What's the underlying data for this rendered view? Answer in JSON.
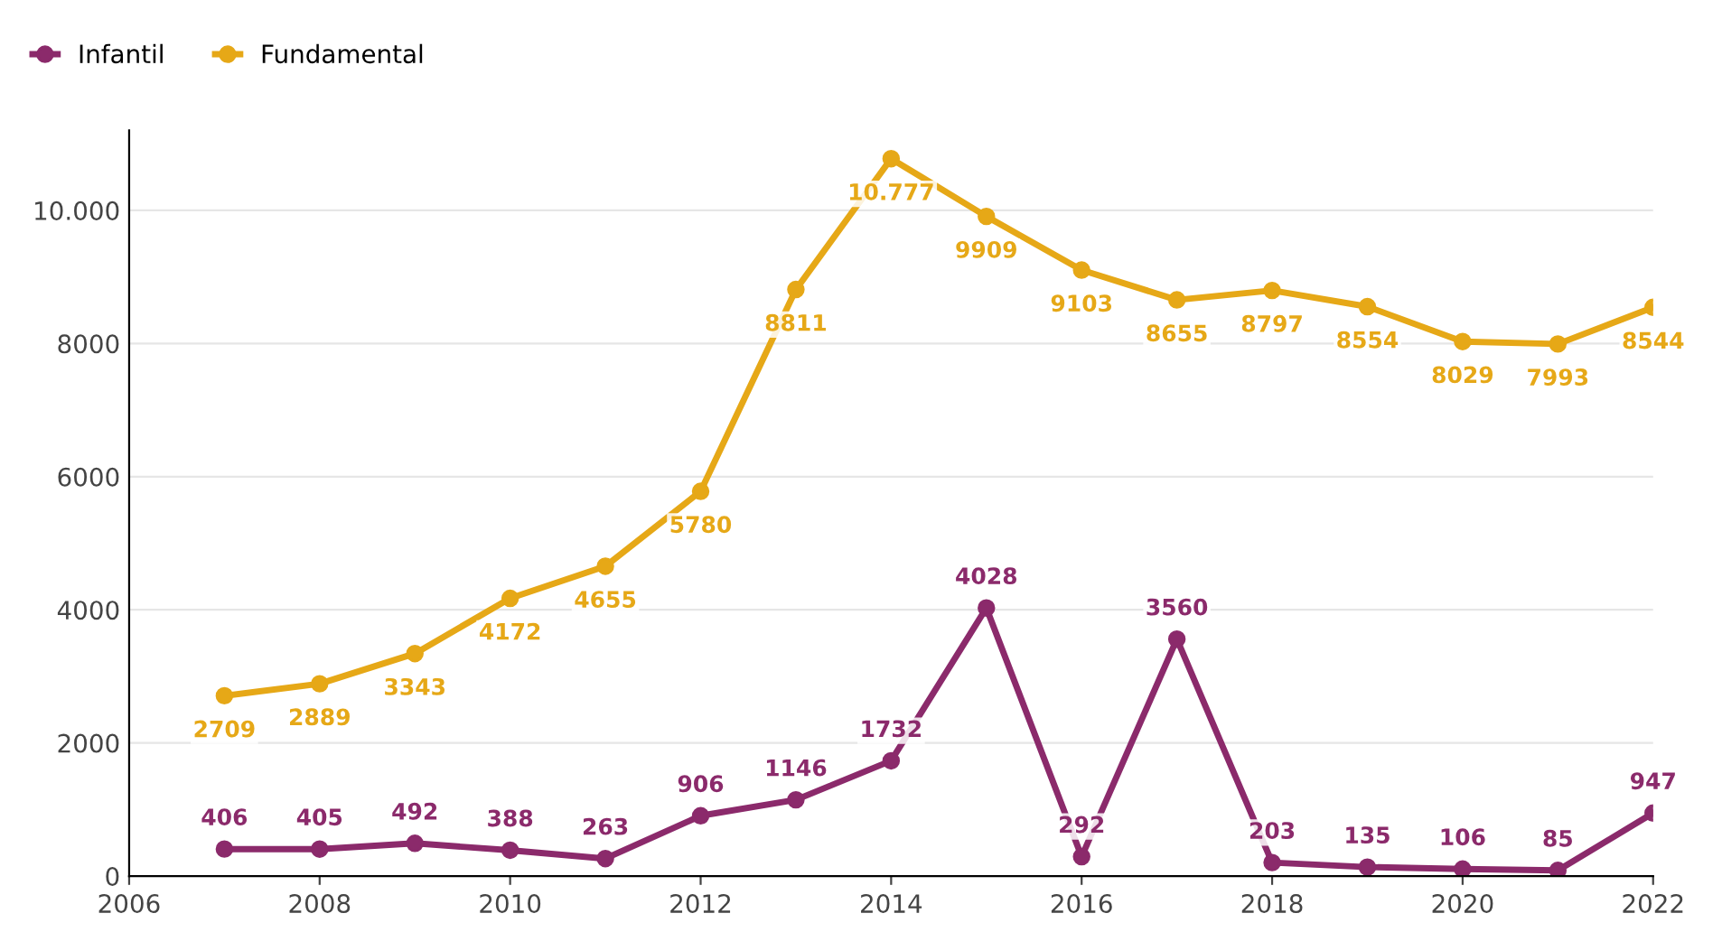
{
  "chart_data": {
    "type": "line",
    "x": [
      2007,
      2008,
      2009,
      2010,
      2011,
      2012,
      2013,
      2014,
      2015,
      2016,
      2017,
      2018,
      2019,
      2020,
      2021,
      2022
    ],
    "series": [
      {
        "name": "Infantil",
        "color": "#8b2a6b",
        "values": [
          406,
          405,
          492,
          388,
          263,
          906,
          1146,
          1732,
          4028,
          292,
          3560,
          203,
          135,
          106,
          85,
          947
        ],
        "value_labels": [
          "406",
          "405",
          "492",
          "388",
          "263",
          "906",
          "1146",
          "1732",
          "4028",
          "292",
          "3560",
          "203",
          "135",
          "106",
          "85",
          "947"
        ]
      },
      {
        "name": "Fundamental",
        "color": "#e6a817",
        "values": [
          2709,
          2889,
          3343,
          4172,
          4655,
          5780,
          8811,
          10777,
          9909,
          9103,
          8655,
          8797,
          8554,
          8029,
          7993,
          8544
        ],
        "value_labels": [
          "2709",
          "2889",
          "3343",
          "4172",
          "4655",
          "5780",
          "8811",
          "10.777",
          "9909",
          "9103",
          "8655",
          "8797",
          "8554",
          "8029",
          "7993",
          "8544"
        ]
      }
    ],
    "xlim": [
      2006,
      2022
    ],
    "xticks": [
      2006,
      2008,
      2010,
      2012,
      2014,
      2016,
      2018,
      2020,
      2022
    ],
    "ylim": [
      0,
      11200
    ],
    "yticks": [
      0,
      2000,
      4000,
      6000,
      8000,
      {
        "value": 10000,
        "label": "10.000"
      }
    ],
    "grid": "y",
    "legend": "top left",
    "marker": "circle",
    "line_style": "solid"
  }
}
